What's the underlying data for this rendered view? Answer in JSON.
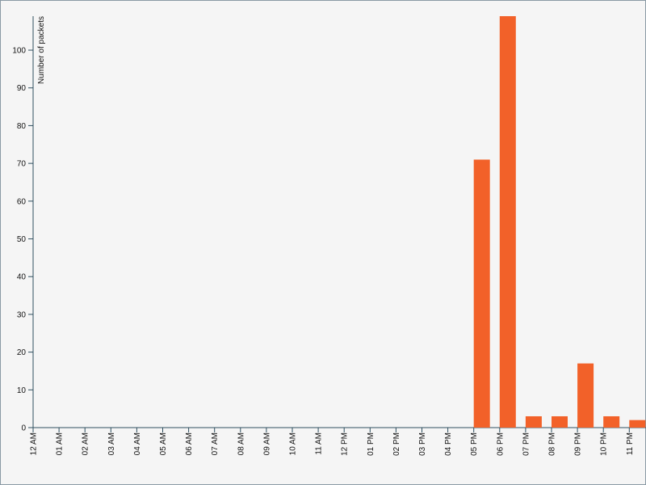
{
  "chart_data": {
    "type": "bar",
    "y_label": "Number of packets",
    "categories": [
      "12 AM",
      "01 AM",
      "02 AM",
      "03 AM",
      "04 AM",
      "05 AM",
      "06 AM",
      "07 AM",
      "08 AM",
      "09 AM",
      "10 AM",
      "11 AM",
      "12 PM",
      "01 PM",
      "02 PM",
      "03 PM",
      "04 PM",
      "05 PM",
      "06 PM",
      "07 PM",
      "08 PM",
      "09 PM",
      "10 PM",
      "11 PM"
    ],
    "values": [
      0,
      0,
      0,
      0,
      0,
      0,
      0,
      0,
      0,
      0,
      0,
      0,
      0,
      0,
      0,
      0,
      0,
      71,
      109,
      3,
      3,
      17,
      3,
      2
    ],
    "color": "#f26129",
    "ylim": [
      0,
      109
    ],
    "yticks": [
      0,
      10,
      20,
      30,
      40,
      50,
      60,
      70,
      80,
      90,
      100
    ]
  }
}
